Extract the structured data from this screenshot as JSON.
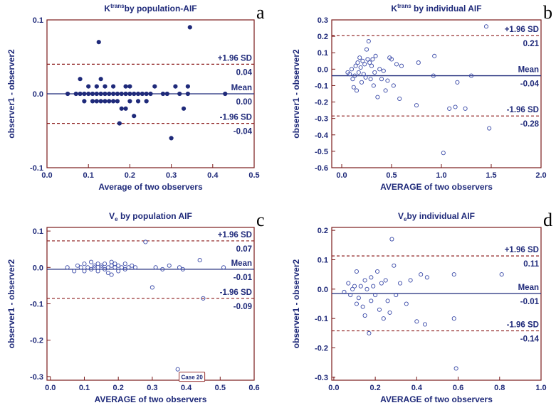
{
  "chart_data": [
    {
      "type": "scatter",
      "panel_label": "a",
      "title_main": "K",
      "title_sup": "trans",
      "title_rest": "by population-AIF",
      "xlabel": "Average of two observers",
      "ylabel": "observer1 - observer2",
      "xlim": [
        0.0,
        0.5
      ],
      "ylim": [
        -0.1,
        0.1
      ],
      "xticks": [
        "0.0",
        "0.1",
        "0.2",
        "0.3",
        "0.4",
        "0.5"
      ],
      "yticks": [
        "-0.1",
        "0.0",
        "0.1"
      ],
      "marker": "filled",
      "mean": 0.0,
      "upper": 0.04,
      "lower": -0.04,
      "labels": {
        "upper_name": "+1.96 SD",
        "upper_value": "0.04",
        "mean_name": "Mean",
        "mean_value": "0.00",
        "lower_name": "-1.96 SD",
        "lower_value": "-0.04"
      },
      "points": [
        [
          0.05,
          0.0
        ],
        [
          0.07,
          0.0
        ],
        [
          0.08,
          0.0
        ],
        [
          0.08,
          0.02
        ],
        [
          0.09,
          -0.01
        ],
        [
          0.09,
          0.0
        ],
        [
          0.1,
          0.0
        ],
        [
          0.1,
          0.01
        ],
        [
          0.11,
          -0.01
        ],
        [
          0.11,
          0.0
        ],
        [
          0.12,
          0.0
        ],
        [
          0.12,
          0.01
        ],
        [
          0.12,
          -0.01
        ],
        [
          0.125,
          0.07
        ],
        [
          0.13,
          0.0
        ],
        [
          0.13,
          0.02
        ],
        [
          0.13,
          -0.01
        ],
        [
          0.14,
          0.0
        ],
        [
          0.14,
          0.01
        ],
        [
          0.14,
          -0.01
        ],
        [
          0.15,
          0.0
        ],
        [
          0.15,
          -0.01
        ],
        [
          0.16,
          0.01
        ],
        [
          0.16,
          0.0
        ],
        [
          0.16,
          -0.01
        ],
        [
          0.17,
          0.0
        ],
        [
          0.17,
          -0.01
        ],
        [
          0.175,
          -0.04
        ],
        [
          0.18,
          0.0
        ],
        [
          0.18,
          -0.02
        ],
        [
          0.19,
          0.0
        ],
        [
          0.19,
          -0.02
        ],
        [
          0.19,
          0.01
        ],
        [
          0.2,
          0.0
        ],
        [
          0.2,
          0.01
        ],
        [
          0.2,
          -0.01
        ],
        [
          0.21,
          -0.03
        ],
        [
          0.21,
          0.0
        ],
        [
          0.22,
          0.0
        ],
        [
          0.22,
          -0.01
        ],
        [
          0.23,
          0.0
        ],
        [
          0.24,
          0.0
        ],
        [
          0.24,
          -0.01
        ],
        [
          0.25,
          0.0
        ],
        [
          0.26,
          0.01
        ],
        [
          0.28,
          0.0
        ],
        [
          0.29,
          0.0
        ],
        [
          0.3,
          -0.06
        ],
        [
          0.31,
          0.01
        ],
        [
          0.32,
          0.0
        ],
        [
          0.33,
          -0.02
        ],
        [
          0.34,
          0.0
        ],
        [
          0.34,
          0.01
        ],
        [
          0.345,
          0.09
        ],
        [
          0.43,
          0.0
        ]
      ]
    },
    {
      "type": "scatter",
      "panel_label": "b",
      "title_main": "K",
      "title_sup": "trans",
      "title_rest": " by individual AIF",
      "xlabel": "AVERAGE of two observers",
      "ylabel": "observer1 - observer2",
      "xlim": [
        -0.1,
        2.0
      ],
      "ylim": [
        -0.6,
        0.3
      ],
      "xticks": [
        "0.0",
        "0.5",
        "1.0",
        "1.5",
        "2.0"
      ],
      "xtick_values": [
        0.0,
        0.5,
        1.0,
        1.5,
        2.0
      ],
      "yticks": [
        "-0.6",
        "-0.5",
        "-0.4",
        "-0.3",
        "-0.2",
        "-0.1",
        "0.0",
        "0.1",
        "0.2",
        "0.3"
      ],
      "marker": "open",
      "mean": -0.04,
      "upper": 0.205,
      "lower": -0.285,
      "labels": {
        "upper_name": "+1.96 SD",
        "upper_value": "0.21",
        "mean_name": "Mean",
        "mean_value": "-0.04",
        "lower_name": "-1.96 SD",
        "lower_value": "-0.28"
      },
      "points": [
        [
          0.06,
          -0.02
        ],
        [
          0.08,
          -0.03
        ],
        [
          0.1,
          0.0
        ],
        [
          0.11,
          -0.06
        ],
        [
          0.12,
          -0.11
        ],
        [
          0.13,
          -0.04
        ],
        [
          0.14,
          0.02
        ],
        [
          0.15,
          -0.13
        ],
        [
          0.16,
          0.04
        ],
        [
          0.17,
          -0.02
        ],
        [
          0.18,
          0.07
        ],
        [
          0.19,
          0.01
        ],
        [
          0.2,
          -0.08
        ],
        [
          0.21,
          0.05
        ],
        [
          0.22,
          -0.03
        ],
        [
          0.23,
          0.03
        ],
        [
          0.24,
          -0.05
        ],
        [
          0.25,
          0.12
        ],
        [
          0.26,
          0.06
        ],
        [
          0.27,
          0.17
        ],
        [
          0.28,
          0.04
        ],
        [
          0.29,
          -0.06
        ],
        [
          0.3,
          0.02
        ],
        [
          0.31,
          0.06
        ],
        [
          0.32,
          -0.1
        ],
        [
          0.33,
          -0.02
        ],
        [
          0.34,
          0.08
        ],
        [
          0.36,
          -0.17
        ],
        [
          0.38,
          0.0
        ],
        [
          0.4,
          -0.06
        ],
        [
          0.42,
          -0.01
        ],
        [
          0.44,
          -0.13
        ],
        [
          0.46,
          -0.07
        ],
        [
          0.48,
          0.07
        ],
        [
          0.5,
          0.06
        ],
        [
          0.52,
          -0.1
        ],
        [
          0.55,
          0.03
        ],
        [
          0.58,
          -0.18
        ],
        [
          0.6,
          0.02
        ],
        [
          0.75,
          -0.22
        ],
        [
          0.77,
          0.04
        ],
        [
          0.92,
          -0.04
        ],
        [
          0.93,
          0.08
        ],
        [
          1.02,
          -0.51
        ],
        [
          1.08,
          -0.24
        ],
        [
          1.14,
          -0.23
        ],
        [
          1.16,
          -0.08
        ],
        [
          1.24,
          -0.24
        ],
        [
          1.3,
          -0.04
        ],
        [
          1.45,
          0.26
        ],
        [
          1.48,
          -0.36
        ]
      ]
    },
    {
      "type": "scatter",
      "panel_label": "c",
      "title_main": "V",
      "title_sub": "e",
      "title_rest": " by population AIF",
      "xlabel": "AVERAGE of two observers",
      "ylabel": "observer1 - observer2",
      "xlim": [
        -0.01,
        0.6
      ],
      "ylim": [
        -0.31,
        0.11
      ],
      "xticks": [
        "0.0",
        "0.1",
        "0.2",
        "0.3",
        "0.4",
        "0.5",
        "0.6"
      ],
      "xtick_values": [
        0.0,
        0.1,
        0.2,
        0.3,
        0.4,
        0.5,
        0.6
      ],
      "yticks": [
        "-0.3",
        "-0.2",
        "-0.1",
        "0.0",
        "0.1"
      ],
      "ytick_values": [
        -0.3,
        -0.2,
        -0.1,
        0.0,
        0.1
      ],
      "marker": "open",
      "mean": -0.005,
      "upper": 0.073,
      "lower": -0.085,
      "labels": {
        "upper_name": "+1.96 SD",
        "upper_value": "0.07",
        "mean_name": "Mean",
        "mean_value": "-0.01",
        "lower_name": "-1.96 SD",
        "lower_value": "-0.09"
      },
      "annotation": "Case 20",
      "annotation_point": [
        0.375,
        -0.28
      ],
      "points": [
        [
          0.05,
          0.0
        ],
        [
          0.07,
          -0.01
        ],
        [
          0.08,
          0.005
        ],
        [
          0.09,
          0.0
        ],
        [
          0.1,
          -0.01
        ],
        [
          0.1,
          0.01
        ],
        [
          0.11,
          0.0
        ],
        [
          0.12,
          0.015
        ],
        [
          0.12,
          -0.005
        ],
        [
          0.13,
          0.005
        ],
        [
          0.13,
          0.0
        ],
        [
          0.14,
          -0.01
        ],
        [
          0.14,
          0.01
        ],
        [
          0.15,
          0.0
        ],
        [
          0.15,
          0.005
        ],
        [
          0.16,
          -0.005
        ],
        [
          0.16,
          0.01
        ],
        [
          0.17,
          0.0
        ],
        [
          0.17,
          -0.015
        ],
        [
          0.18,
          0.005
        ],
        [
          0.18,
          0.015
        ],
        [
          0.18,
          -0.02
        ],
        [
          0.19,
          0.0
        ],
        [
          0.19,
          0.01
        ],
        [
          0.2,
          -0.01
        ],
        [
          0.2,
          0.005
        ],
        [
          0.21,
          0.0
        ],
        [
          0.22,
          0.01
        ],
        [
          0.22,
          -0.005
        ],
        [
          0.23,
          0.0
        ],
        [
          0.24,
          0.005
        ],
        [
          0.25,
          0.0
        ],
        [
          0.28,
          0.07
        ],
        [
          0.3,
          -0.055
        ],
        [
          0.31,
          0.0
        ],
        [
          0.33,
          -0.005
        ],
        [
          0.35,
          0.005
        ],
        [
          0.38,
          0.0
        ],
        [
          0.39,
          -0.005
        ],
        [
          0.44,
          0.02
        ],
        [
          0.45,
          -0.085
        ],
        [
          0.51,
          0.0
        ],
        [
          0.375,
          -0.28
        ]
      ]
    },
    {
      "type": "scatter",
      "panel_label": "d",
      "title_main": "V",
      "title_sub": "e",
      "title_rest": "by individual AIF",
      "xlabel": "AVERAGE of two observers",
      "ylabel": "observer1 - observer2",
      "xlim": [
        -0.01,
        1.0
      ],
      "ylim": [
        -0.31,
        0.21
      ],
      "xticks": [
        "0.0",
        "0.2",
        "0.4",
        "0.6",
        "0.8",
        "1.0"
      ],
      "xtick_values": [
        0.0,
        0.2,
        0.4,
        0.6,
        0.8,
        1.0
      ],
      "yticks": [
        "-0.3",
        "-0.2",
        "-0.1",
        "0.0",
        "0.1",
        "0.2"
      ],
      "ytick_values": [
        -0.3,
        -0.2,
        -0.1,
        0.0,
        0.1,
        0.2
      ],
      "marker": "open",
      "mean": -0.015,
      "upper": 0.113,
      "lower": -0.142,
      "labels": {
        "upper_name": "+1.96 SD",
        "upper_value": "0.11",
        "mean_name": "Mean",
        "mean_value": "-0.01",
        "lower_name": "-1.96 SD",
        "lower_value": "-0.14"
      },
      "points": [
        [
          0.05,
          -0.01
        ],
        [
          0.07,
          0.02
        ],
        [
          0.08,
          -0.02
        ],
        [
          0.09,
          0.0
        ],
        [
          0.1,
          0.01
        ],
        [
          0.11,
          -0.05
        ],
        [
          0.11,
          0.06
        ],
        [
          0.12,
          -0.03
        ],
        [
          0.13,
          0.01
        ],
        [
          0.14,
          -0.06
        ],
        [
          0.15,
          0.03
        ],
        [
          0.15,
          -0.09
        ],
        [
          0.16,
          0.0
        ],
        [
          0.17,
          -0.15
        ],
        [
          0.18,
          -0.04
        ],
        [
          0.18,
          0.04
        ],
        [
          0.19,
          0.01
        ],
        [
          0.2,
          -0.02
        ],
        [
          0.21,
          0.06
        ],
        [
          0.22,
          -0.07
        ],
        [
          0.23,
          0.02
        ],
        [
          0.24,
          -0.1
        ],
        [
          0.25,
          0.03
        ],
        [
          0.26,
          -0.04
        ],
        [
          0.27,
          -0.08
        ],
        [
          0.28,
          0.17
        ],
        [
          0.29,
          0.08
        ],
        [
          0.3,
          -0.02
        ],
        [
          0.32,
          0.02
        ],
        [
          0.35,
          -0.05
        ],
        [
          0.37,
          0.03
        ],
        [
          0.4,
          -0.11
        ],
        [
          0.42,
          0.05
        ],
        [
          0.44,
          -0.12
        ],
        [
          0.45,
          0.04
        ],
        [
          0.58,
          -0.1
        ],
        [
          0.58,
          0.05
        ],
        [
          0.59,
          -0.27
        ],
        [
          0.81,
          0.05
        ]
      ]
    }
  ]
}
